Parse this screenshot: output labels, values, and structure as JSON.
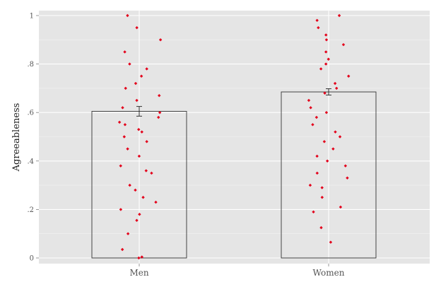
{
  "chart_data": {
    "type": "bar",
    "categories": [
      "Men",
      "Women"
    ],
    "values": [
      0.605,
      0.685
    ],
    "error_bars": [
      [
        0.585,
        0.625
      ],
      [
        0.672,
        0.698
      ]
    ],
    "xlabel": "",
    "ylabel": "Agreeableness",
    "ylim": [
      0,
      1
    ],
    "yticks": [
      0,
      0.2,
      0.4,
      0.6,
      0.8,
      1
    ],
    "ytick_labels": [
      "0",
      ".2",
      ".4",
      ".6",
      ".8",
      "1"
    ],
    "grid": true,
    "legend": "none",
    "jitter_points": {
      "Men": [
        0.0,
        0.004,
        0.035,
        0.1,
        0.155,
        0.18,
        0.2,
        0.23,
        0.25,
        0.28,
        0.3,
        0.35,
        0.36,
        0.38,
        0.42,
        0.45,
        0.48,
        0.5,
        0.52,
        0.53,
        0.55,
        0.56,
        0.58,
        0.6,
        0.62,
        0.65,
        0.67,
        0.7,
        0.72,
        0.75,
        0.78,
        0.8,
        0.85,
        0.9,
        0.95,
        1.0
      ],
      "Women": [
        0.065,
        0.125,
        0.19,
        0.21,
        0.25,
        0.29,
        0.3,
        0.33,
        0.35,
        0.38,
        0.4,
        0.42,
        0.45,
        0.48,
        0.5,
        0.52,
        0.55,
        0.58,
        0.6,
        0.62,
        0.65,
        0.68,
        0.7,
        0.72,
        0.75,
        0.78,
        0.8,
        0.82,
        0.85,
        0.88,
        0.9,
        0.92,
        0.95,
        0.98,
        1.0
      ]
    },
    "colors": {
      "panel": "#e5e5e5",
      "grid": "#ffffff",
      "point": "#e3001b",
      "bar_outline": "#333333"
    }
  }
}
